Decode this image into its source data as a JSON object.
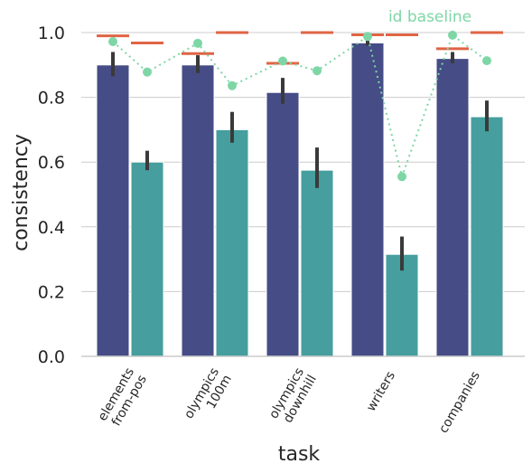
{
  "chart_data": {
    "type": "bar",
    "xlabel": "task",
    "ylabel": "consistency",
    "ylim": [
      0,
      1.05
    ],
    "yticks": [
      "0.0",
      "0.2",
      "0.4",
      "0.6",
      "0.8",
      "1.0"
    ],
    "grid": "horizontal",
    "categories": [
      [
        "elements",
        "from-pos"
      ],
      [
        "olympics",
        "100m"
      ],
      [
        "olympics",
        "downhill"
      ],
      [
        "writers"
      ],
      [
        "companies"
      ]
    ],
    "series": [
      {
        "values": [
          0.9,
          0.9,
          0.815,
          0.968,
          0.92
        ],
        "ci_low": [
          0.865,
          0.875,
          0.78,
          0.96,
          0.905
        ],
        "ci_high": [
          0.94,
          0.93,
          0.86,
          0.975,
          0.94
        ],
        "color": "#464c86"
      },
      {
        "values": [
          0.6,
          0.7,
          0.575,
          0.315,
          0.74
        ],
        "ci_low": [
          0.575,
          0.66,
          0.52,
          0.265,
          0.695
        ],
        "ci_high": [
          0.635,
          0.755,
          0.645,
          0.37,
          0.79
        ],
        "color": "#469e9e"
      }
    ],
    "baseline_dashes": {
      "color": "#e06444",
      "values": [
        [
          0.99,
          0.968
        ],
        [
          0.935,
          1.0
        ],
        [
          0.905,
          1.0
        ],
        [
          0.993,
          0.993
        ],
        [
          0.95,
          1.0
        ]
      ]
    },
    "id_baseline": {
      "color": "#7ed6a6",
      "label": "id baseline",
      "values": [
        [
          0.972,
          0.878
        ],
        [
          0.967,
          0.836
        ],
        [
          0.912,
          0.882
        ],
        [
          0.988,
          0.555
        ],
        [
          0.992,
          0.913
        ]
      ]
    }
  }
}
